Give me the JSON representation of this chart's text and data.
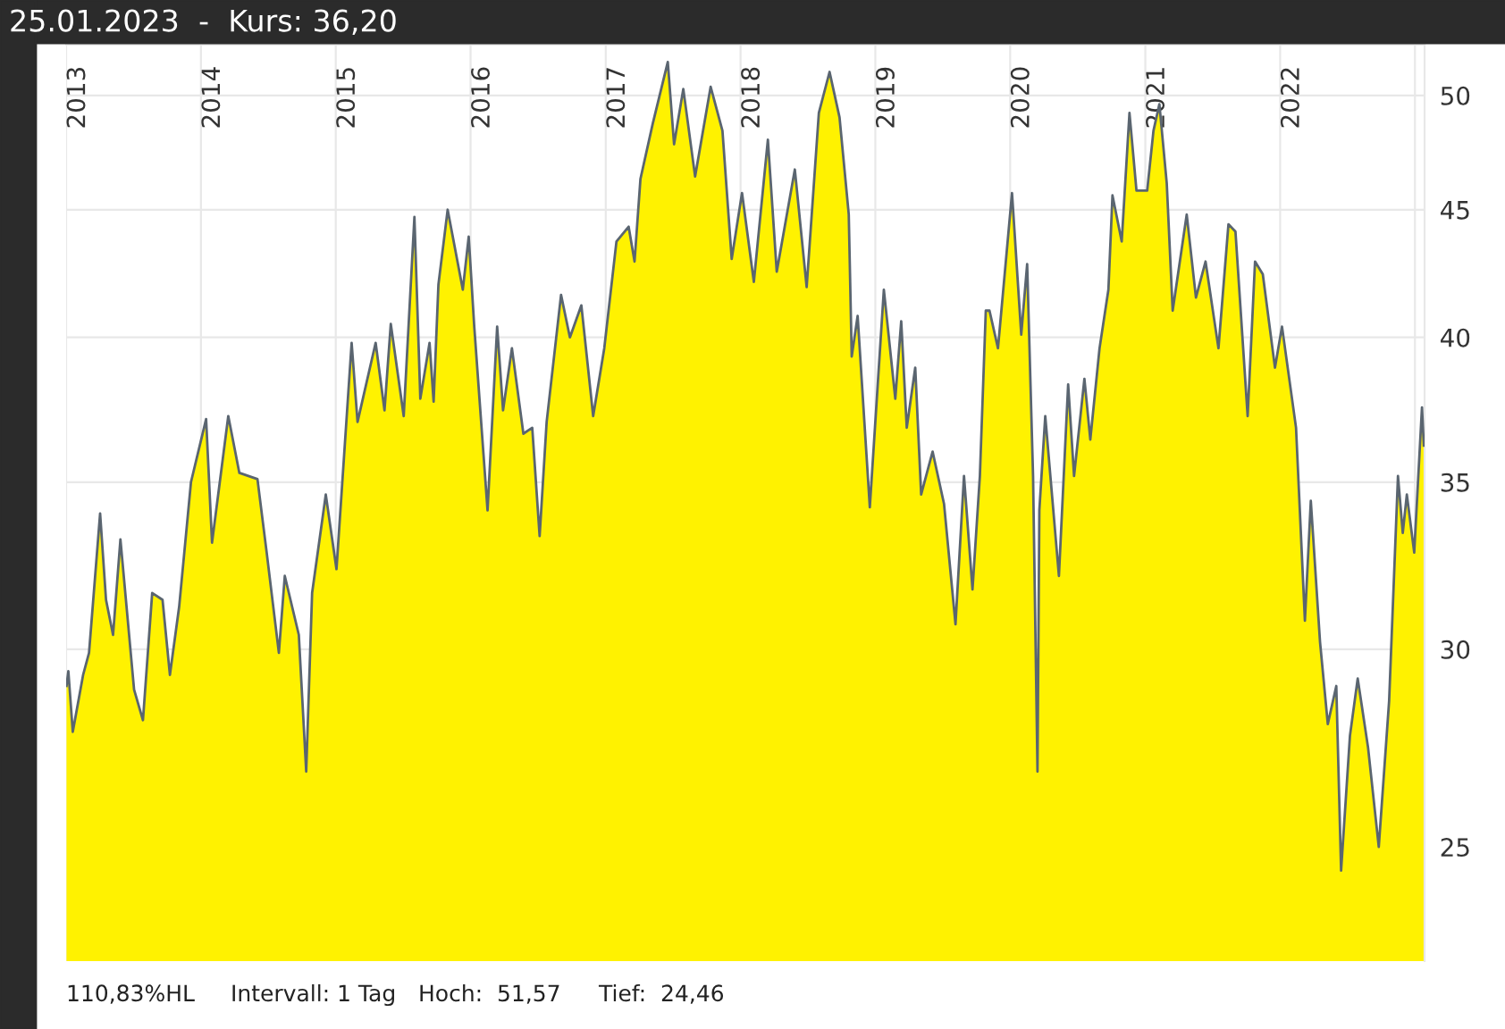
{
  "chart_data": {
    "type": "area",
    "title": "25.01.2023  -  Kurs: 36,20",
    "x": [
      "2013-01-02",
      "2013-01-07",
      "2013-01-19",
      "2013-02-16",
      "2013-03-04",
      "2013-04-03",
      "2013-04-19",
      "2013-05-08",
      "2013-05-28",
      "2013-07-04",
      "2013-07-28",
      "2013-08-22",
      "2013-09-19",
      "2013-10-09",
      "2013-11-03",
      "2013-12-05",
      "2014-01-15",
      "2014-01-31",
      "2014-03-16",
      "2014-04-15",
      "2014-06-03",
      "2014-06-28",
      "2014-07-31",
      "2014-08-16",
      "2014-09-23",
      "2014-10-13",
      "2014-10-29",
      "2014-12-05",
      "2015-01-03",
      "2015-02-13",
      "2015-03-01",
      "2015-04-19",
      "2015-05-13",
      "2015-05-30",
      "2015-07-04",
      "2015-08-02",
      "2015-08-18",
      "2015-09-12",
      "2015-09-23",
      "2015-10-06",
      "2015-10-31",
      "2015-12-11",
      "2015-12-27",
      "2016-01-11",
      "2016-02-16",
      "2016-03-13",
      "2016-03-29",
      "2016-04-22",
      "2016-05-23",
      "2016-06-16",
      "2016-07-06",
      "2016-07-25",
      "2016-09-02",
      "2016-09-26",
      "2016-10-27",
      "2016-11-28",
      "2016-12-28",
      "2017-01-30",
      "2017-03-04",
      "2017-03-20",
      "2017-04-05",
      "2017-05-08",
      "2017-06-18",
      "2017-07-05",
      "2017-07-30",
      "2017-08-31",
      "2017-10-12",
      "2017-11-13",
      "2017-12-08",
      "2018-01-05",
      "2018-02-06",
      "2018-03-16",
      "2018-04-09",
      "2018-05-28",
      "2018-06-29",
      "2018-08-01",
      "2018-08-30",
      "2018-09-26",
      "2018-10-21",
      "2018-10-29",
      "2018-11-14",
      "2018-12-17",
      "2019-01-24",
      "2019-02-24",
      "2019-03-12",
      "2019-03-27",
      "2019-04-19",
      "2019-05-05",
      "2019-06-05",
      "2019-07-06",
      "2019-08-06",
      "2019-08-29",
      "2019-09-21",
      "2019-10-11",
      "2019-10-27",
      "2019-11-06",
      "2019-11-29",
      "2020-01-06",
      "2020-01-31",
      "2020-02-16",
      "2020-03-03",
      "2020-03-15",
      "2020-03-20",
      "2020-04-05",
      "2020-05-12",
      "2020-06-06",
      "2020-06-22",
      "2020-07-20",
      "2020-08-05",
      "2020-08-30",
      "2020-09-23",
      "2020-10-04",
      "2020-10-29",
      "2020-11-19",
      "2020-12-08",
      "2021-01-06",
      "2021-01-23",
      "2021-02-08",
      "2021-02-28",
      "2021-03-16",
      "2021-04-23",
      "2021-05-18",
      "2021-06-13",
      "2021-07-18",
      "2021-08-14",
      "2021-09-02",
      "2021-10-05",
      "2021-10-25",
      "2021-11-15",
      "2021-12-18",
      "2022-01-06",
      "2022-02-13",
      "2022-03-09",
      "2022-03-25",
      "2022-04-19",
      "2022-05-10",
      "2022-06-02",
      "2022-06-15",
      "2022-07-09",
      "2022-07-30",
      "2022-08-27",
      "2022-09-25",
      "2022-10-23",
      "2022-11-16",
      "2022-11-29",
      "2022-12-10",
      "2022-12-30",
      "2023-01-20",
      "2023-01-25"
    ],
    "series": [
      {
        "color": "#fff200",
        "values": [
          29.0,
          29.4,
          27.8,
          29.3,
          29.9,
          34.0,
          31.4,
          30.4,
          33.2,
          28.9,
          28.1,
          31.6,
          31.4,
          29.3,
          31.2,
          35.0,
          37.1,
          33.1,
          37.2,
          35.3,
          35.1,
          32.8,
          29.9,
          32.1,
          30.4,
          26.8,
          31.6,
          34.6,
          32.3,
          39.8,
          37.0,
          39.8,
          37.4,
          40.5,
          37.2,
          44.7,
          37.8,
          39.8,
          37.7,
          42.0,
          45.0,
          41.8,
          43.9,
          40.4,
          34.1,
          40.4,
          37.4,
          39.6,
          36.6,
          36.8,
          33.3,
          37.0,
          41.6,
          40.0,
          41.2,
          37.2,
          39.6,
          43.7,
          44.3,
          42.9,
          46.3,
          48.7,
          51.57,
          47.8,
          50.3,
          46.4,
          50.4,
          48.4,
          43.0,
          45.7,
          42.1,
          48.0,
          42.5,
          46.7,
          41.9,
          49.2,
          51.1,
          49.0,
          44.8,
          39.3,
          40.8,
          34.2,
          41.8,
          37.8,
          40.6,
          36.8,
          38.9,
          34.6,
          36.0,
          34.3,
          30.7,
          35.2,
          31.7,
          35.2,
          41.0,
          41.0,
          39.6,
          45.7,
          40.1,
          42.8,
          35.2,
          26.8,
          34.1,
          37.2,
          32.1,
          38.3,
          35.2,
          38.5,
          36.4,
          39.6,
          41.8,
          45.6,
          43.7,
          49.2,
          45.8,
          45.8,
          48.4,
          49.6,
          46.1,
          41.0,
          44.8,
          41.5,
          42.9,
          39.6,
          44.4,
          44.1,
          37.2,
          42.9,
          42.4,
          38.9,
          40.4,
          36.8,
          30.8,
          34.4,
          30.2,
          28.0,
          29.0,
          24.46,
          27.7,
          29.2,
          27.4,
          25.0,
          28.6,
          35.2,
          33.4,
          34.6,
          32.8,
          37.5,
          36.2
        ]
      }
    ],
    "xlim": [
      "2013-01-01",
      "2023-01-27"
    ],
    "xticks": [
      {
        "value": "2013-01-01",
        "label": "2013"
      },
      {
        "value": "2014-01-01",
        "label": "2014"
      },
      {
        "value": "2015-01-01",
        "label": "2015"
      },
      {
        "value": "2016-01-01",
        "label": "2016"
      },
      {
        "value": "2017-01-01",
        "label": "2017"
      },
      {
        "value": "2018-01-01",
        "label": "2018"
      },
      {
        "value": "2019-01-01",
        "label": "2019"
      },
      {
        "value": "2020-01-01",
        "label": "2020"
      },
      {
        "value": "2021-01-01",
        "label": "2021"
      },
      {
        "value": "2022-01-01",
        "label": "2022"
      },
      {
        "value": "2023-01-01",
        "label": null
      }
    ],
    "ylim": [
      22.5,
      52.4
    ],
    "yticks": [
      25,
      30,
      35,
      40,
      45,
      50
    ],
    "log": "y",
    "grid": true,
    "marker": "none",
    "line_style": "solid",
    "annotations": [
      "110,83%HL",
      "Intervall: 1 Tag",
      "Hoch:  51,57",
      "Tief:  24,46"
    ]
  }
}
